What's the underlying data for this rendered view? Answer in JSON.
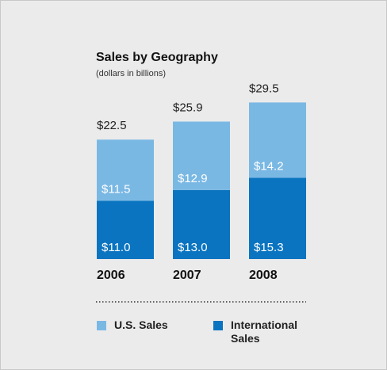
{
  "chart_data": {
    "type": "stacked_bar",
    "title": "Sales by Geography",
    "subtitle": "(dollars in billions)",
    "categories": [
      "2006",
      "2007",
      "2008"
    ],
    "series": [
      {
        "name": "U.S. Sales",
        "color": "#7ab8e4",
        "values": [
          11.5,
          12.9,
          14.2
        ],
        "value_labels": [
          "$11.5",
          "$12.9",
          "$14.2"
        ]
      },
      {
        "name": "International Sales",
        "color": "#0a74c0",
        "values": [
          11.0,
          13.0,
          15.3
        ],
        "value_labels": [
          "$11.0",
          "$13.0",
          "$15.3"
        ]
      }
    ],
    "totals": [
      22.5,
      25.9,
      29.5
    ],
    "total_labels": [
      "$22.5",
      "$25.9",
      "$29.5"
    ]
  }
}
